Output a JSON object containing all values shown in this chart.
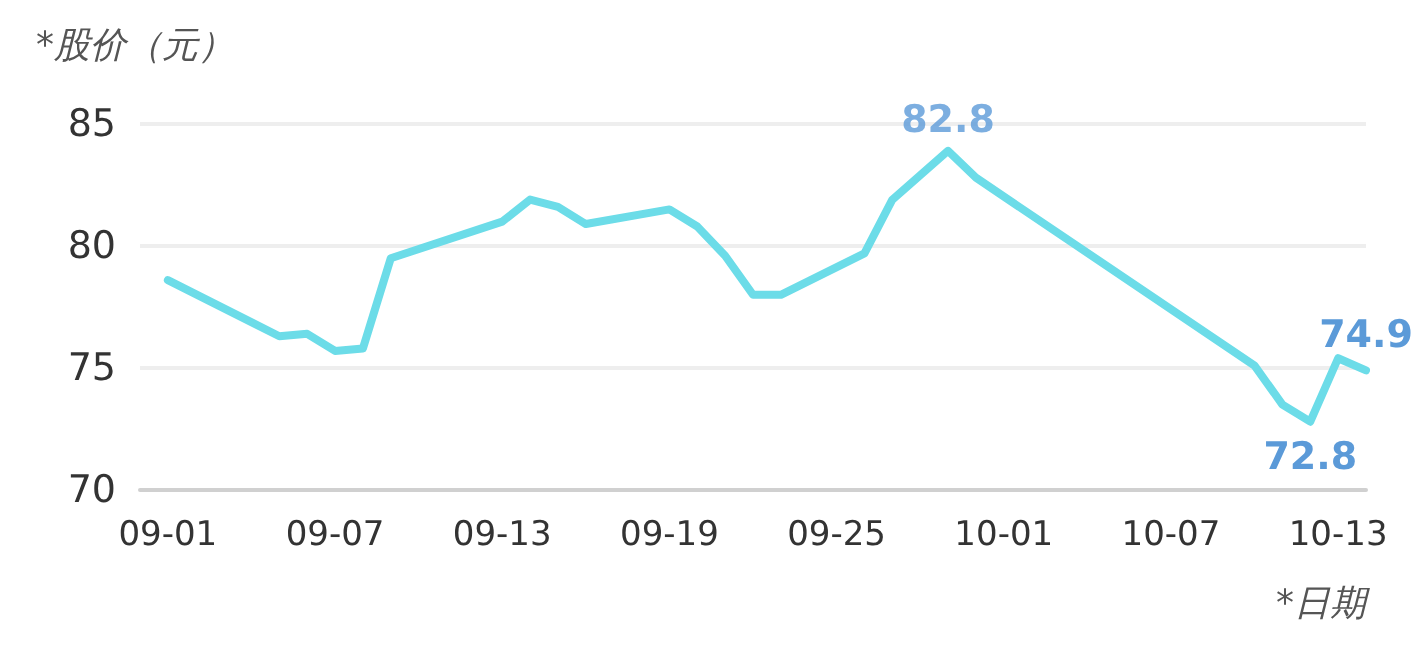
{
  "chart_data": {
    "type": "line",
    "ylabel": "*股价（元）",
    "xlabel": "*日期",
    "x": [
      "--09-01",
      "--09-05",
      "--09-06",
      "--09-07",
      "--09-08",
      "--09-09",
      "--09-13",
      "--09-14",
      "--09-15",
      "--09-16",
      "--09-19",
      "--09-20",
      "--09-21",
      "--09-22",
      "--09-23",
      "--09-26",
      "--09-27",
      "--09-29",
      "--09-30",
      "--10-10",
      "--10-11",
      "--10-12",
      "--10-13",
      "--10-14"
    ],
    "series": [
      {
        "color": "#6cdce8",
        "values": [
          78.6,
          76.3,
          76.4,
          75.7,
          75.8,
          79.5,
          81.0,
          81.9,
          81.6,
          80.9,
          81.5,
          80.8,
          79.6,
          78.0,
          78.0,
          79.7,
          81.9,
          83.9,
          82.8,
          75.1,
          73.5,
          72.8,
          75.4,
          74.9
        ],
        "value_labels": [
          null,
          null,
          null,
          null,
          null,
          null,
          null,
          null,
          null,
          null,
          null,
          null,
          null,
          null,
          null,
          null,
          null,
          null,
          null,
          null,
          null,
          "72.8",
          null,
          "74.9"
        ]
      }
    ],
    "annotations": [
      {
        "text": "82.8",
        "x": "--09-29",
        "y": 83.9
      }
    ],
    "ylim": [
      70,
      85
    ],
    "yticks": [
      70,
      75,
      80,
      85
    ],
    "xlim": [
      "--08-31",
      "--10-14"
    ],
    "xticks": [
      {
        "value": "--09-01",
        "label": "09-01"
      },
      {
        "value": "--09-07",
        "label": "09-07"
      },
      {
        "value": "--09-13",
        "label": "09-13"
      },
      {
        "value": "--09-19",
        "label": "09-19"
      },
      {
        "value": "--09-25",
        "label": "09-25"
      },
      {
        "value": "--10-01",
        "label": "10-01"
      },
      {
        "value": "--10-07",
        "label": "10-07"
      },
      {
        "value": "--10-13",
        "label": "10-13"
      }
    ],
    "grid": "y",
    "marker": "none",
    "line_style": "solid"
  }
}
